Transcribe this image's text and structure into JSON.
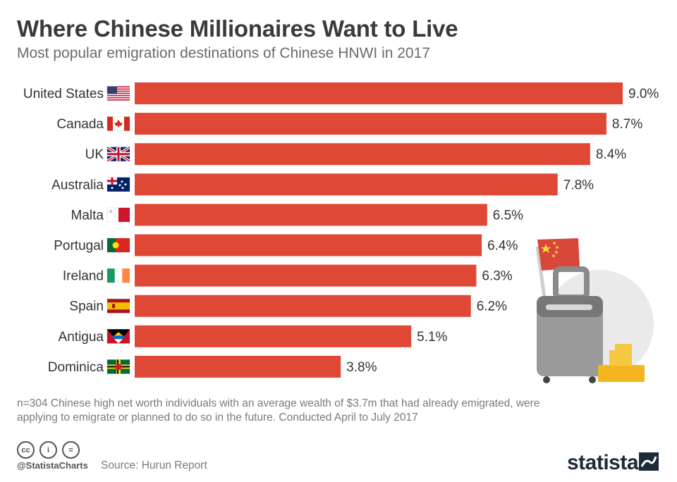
{
  "header": {
    "title": "Where Chinese Millionaires Want to Live",
    "subtitle": "Most popular emigration destinations of Chinese HNWI in 2017"
  },
  "chart_data": {
    "type": "bar",
    "orientation": "horizontal",
    "categories": [
      "United States",
      "Canada",
      "UK",
      "Australia",
      "Malta",
      "Portugal",
      "Ireland",
      "Spain",
      "Antigua",
      "Dominica"
    ],
    "values": [
      9.0,
      8.7,
      8.4,
      7.8,
      6.5,
      6.4,
      6.3,
      6.2,
      5.1,
      3.8
    ],
    "value_labels": [
      "9.0%",
      "8.7%",
      "8.4%",
      "7.8%",
      "6.5%",
      "6.4%",
      "6.3%",
      "6.2%",
      "5.1%",
      "3.8%"
    ],
    "flags": [
      "us-flag-icon",
      "canada-flag-icon",
      "uk-flag-icon",
      "australia-flag-icon",
      "malta-flag-icon",
      "portugal-flag-icon",
      "ireland-flag-icon",
      "spain-flag-icon",
      "antigua-flag-icon",
      "dominica-flag-icon"
    ],
    "xlim": [
      0,
      9.0
    ],
    "bar_color": "#e04836",
    "grid": false,
    "legend": false
  },
  "footer": {
    "note": "n=304 Chinese high net worth individuals with an average wealth of $3.7m that had already emigrated, were applying to emigrate or planned to do so in the future. Conducted April to July 2017",
    "handle": "@StatistaCharts",
    "source": "Source: Hurun Report",
    "brand": "statista",
    "license_icons": [
      "cc-icon",
      "by-icon",
      "nd-icon"
    ]
  }
}
